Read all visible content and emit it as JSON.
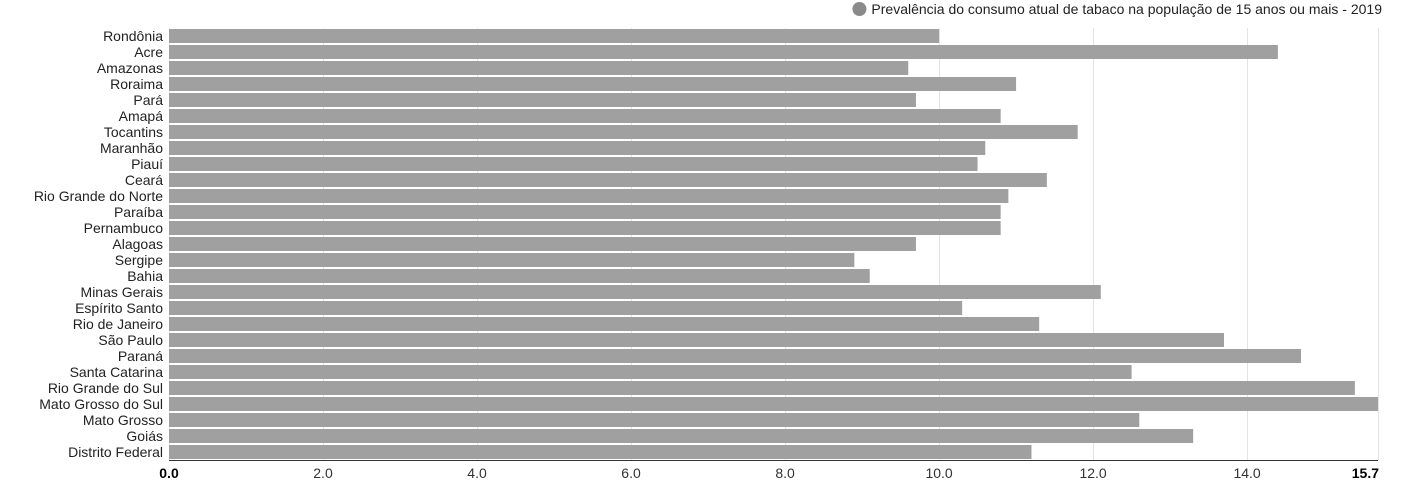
{
  "chart_data": {
    "type": "bar",
    "orientation": "horizontal",
    "categories": [
      "Rondônia",
      "Acre",
      "Amazonas",
      "Roraima",
      "Pará",
      "Amapá",
      "Tocantins",
      "Maranhão",
      "Piauí",
      "Ceará",
      "Rio Grande do Norte",
      "Paraíba",
      "Pernambuco",
      "Alagoas",
      "Sergipe",
      "Bahia",
      "Minas Gerais",
      "Espírito Santo",
      "Rio de Janeiro",
      "São Paulo",
      "Paraná",
      "Santa Catarina",
      "Rio Grande do Sul",
      "Mato Grosso do Sul",
      "Mato Grosso",
      "Goiás",
      "Distrito Federal"
    ],
    "series": [
      {
        "name": "Prevalência do consumo atual de tabaco na população de 15 anos ou mais - 2019",
        "color": "#a0a0a0",
        "values": [
          10.0,
          14.4,
          9.6,
          11.0,
          9.7,
          10.8,
          11.8,
          10.6,
          10.5,
          11.4,
          10.9,
          10.8,
          10.8,
          9.7,
          8.9,
          9.1,
          12.1,
          10.3,
          11.3,
          13.7,
          14.7,
          12.5,
          15.4,
          15.7,
          12.6,
          13.3,
          11.2
        ]
      }
    ],
    "title": "",
    "xlabel": "",
    "ylabel": "",
    "xlim": [
      0,
      15.7
    ],
    "ticks": [
      "0.0",
      "2.0",
      "4.0",
      "6.0",
      "8.0",
      "10.0",
      "12.0",
      "14.0",
      "15.7"
    ],
    "grid": true,
    "legend": "top-right",
    "legend_marker_color": "#8a8a8a"
  }
}
